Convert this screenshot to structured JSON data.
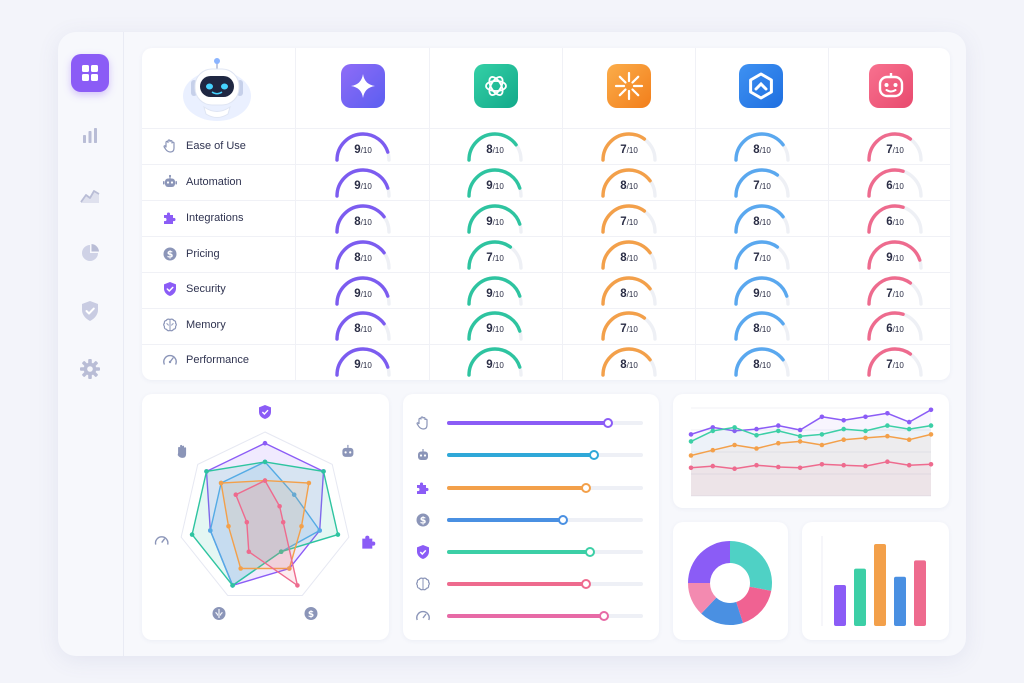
{
  "sidebar": {
    "items": [
      {
        "icon": "grid-icon",
        "active": true
      },
      {
        "icon": "bar-chart-icon"
      },
      {
        "icon": "line-chart-icon"
      },
      {
        "icon": "pie-chart-icon"
      },
      {
        "icon": "shield-check-icon"
      },
      {
        "icon": "gear-icon"
      }
    ]
  },
  "tools": [
    {
      "icon": "sparkle-logo-icon",
      "color": "#7c5cf0",
      "bg": "#7c5cf0"
    },
    {
      "icon": "knot-logo-icon",
      "color": "#2ec4a0",
      "bg": "#22b992"
    },
    {
      "icon": "sunburst-logo-icon",
      "color": "#f3a04a",
      "bg": "#f58f2a"
    },
    {
      "icon": "hexagon-logo-icon",
      "color": "#5aa8ef",
      "bg": "#2f80ed"
    },
    {
      "icon": "robot-face-logo-icon",
      "color": "#ee6b8e",
      "bg": "#ef5b7d"
    }
  ],
  "criteria": [
    {
      "label": "Ease of Use",
      "icon": "hand-icon",
      "scores": [
        "9",
        "8",
        "7",
        "8",
        "7"
      ]
    },
    {
      "label": "Automation",
      "icon": "robot-icon",
      "scores": [
        "9",
        "9",
        "8",
        "7",
        "6"
      ]
    },
    {
      "label": "Integrations",
      "icon": "puzzle-icon",
      "scores": [
        "8",
        "9",
        "7",
        "8",
        "6"
      ]
    },
    {
      "label": "Pricing",
      "icon": "dollar-icon",
      "scores": [
        "8",
        "7",
        "8",
        "7",
        "9"
      ]
    },
    {
      "label": "Security",
      "icon": "shield-icon",
      "scores": [
        "9",
        "9",
        "8",
        "9",
        "7"
      ]
    },
    {
      "label": "Memory",
      "icon": "brain-icon",
      "scores": [
        "8",
        "9",
        "7",
        "8",
        "6"
      ]
    },
    {
      "label": "Performance",
      "icon": "speedometer-icon",
      "scores": [
        "9",
        "9",
        "8",
        "8",
        "7"
      ]
    }
  ],
  "score_suffix": "/10",
  "radar": {
    "axis_icons": [
      "shield-icon",
      "robot-icon",
      "puzzle-icon",
      "dollar-icon",
      "brain-icon",
      "speedometer-icon",
      "hand-icon"
    ],
    "series": [
      {
        "color": "#8b5cf6",
        "values": [
          9,
          9,
          8,
          8,
          9,
          8,
          9
        ]
      },
      {
        "color": "#5aa8ef",
        "values": [
          8,
          7,
          8,
          7,
          9,
          8,
          8
        ]
      },
      {
        "color": "#2ec4a0",
        "values": [
          8,
          9,
          9,
          7,
          9,
          9,
          9
        ]
      },
      {
        "color": "#f3a04a",
        "values": [
          7,
          8,
          7,
          8,
          8,
          7,
          8
        ]
      },
      {
        "color": "#ee6b8e",
        "values": [
          7,
          6,
          6,
          9,
          7,
          6,
          7
        ]
      }
    ]
  },
  "bar_rows": [
    {
      "icon": "hand-icon",
      "color": "#8b5cf6",
      "value": 0.82
    },
    {
      "icon": "robot-icon",
      "color": "#2fa8d8",
      "value": 0.75
    },
    {
      "icon": "puzzle-icon",
      "color": "#f3a04a",
      "value": 0.71
    },
    {
      "icon": "dollar-icon",
      "color": "#4a90e2",
      "value": 0.59
    },
    {
      "icon": "shield-icon",
      "color": "#3ccfa6",
      "value": 0.73
    },
    {
      "icon": "brain-icon",
      "color": "#ee6b8e",
      "value": 0.71
    },
    {
      "icon": "speedometer-icon",
      "color": "#e76aa6",
      "value": 0.8
    }
  ],
  "chart_data": [
    {
      "type": "line",
      "ylim": [
        0,
        10
      ],
      "grid": true,
      "series": [
        {
          "color": "#8b5cf6",
          "values": [
            7.0,
            7.8,
            7.4,
            7.6,
            8.0,
            7.5,
            9.0,
            8.6,
            9.0,
            9.4,
            8.4,
            9.8
          ]
        },
        {
          "color": "#3ccfa6",
          "values": [
            6.2,
            7.4,
            7.8,
            6.9,
            7.4,
            6.8,
            7.0,
            7.6,
            7.4,
            8.0,
            7.6,
            8.0
          ]
        },
        {
          "color": "#f3a04a",
          "values": [
            4.6,
            5.2,
            5.8,
            5.4,
            6.0,
            6.2,
            5.8,
            6.4,
            6.6,
            6.8,
            6.4,
            7.0
          ]
        },
        {
          "color": "#ee6b8e",
          "values": [
            3.2,
            3.4,
            3.1,
            3.5,
            3.3,
            3.2,
            3.6,
            3.5,
            3.4,
            3.9,
            3.5,
            3.6
          ]
        }
      ]
    },
    {
      "type": "pie",
      "donut": true,
      "values": [
        28,
        17,
        17,
        13,
        25
      ],
      "colors": [
        "#4fd1c5",
        "#f06292",
        "#4a90e2",
        "#f38ab0",
        "#8b5cf6"
      ]
    },
    {
      "type": "bar",
      "values": [
        5,
        7,
        10,
        6,
        8
      ],
      "ylim": [
        0,
        10
      ],
      "colors": [
        "#8b5cf6",
        "#3ccfa6",
        "#f3a04a",
        "#4a90e2",
        "#ee6b8e"
      ]
    }
  ]
}
